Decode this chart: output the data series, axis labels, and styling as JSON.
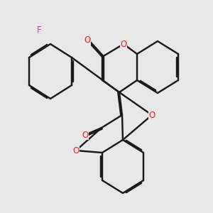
{
  "bg": "#e8e8e8",
  "bc": "#1a1a1a",
  "oc": "#ff1a1a",
  "fc": "#cc33cc",
  "lw": 1.75,
  "doff": 0.058,
  "shorten": 0.13,
  "figsize": [
    3.0,
    3.0
  ],
  "dpi": 100,
  "xlim": [
    0,
    10
  ],
  "ylim": [
    0,
    10
  ]
}
